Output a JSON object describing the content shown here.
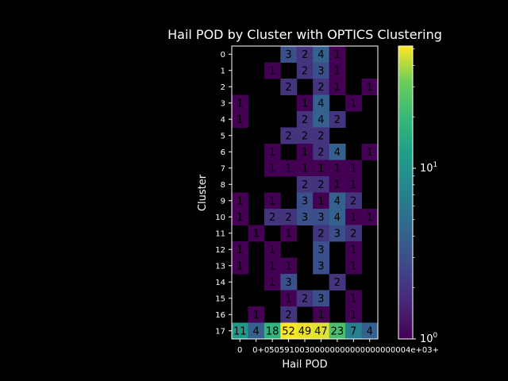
{
  "chart_data": {
    "type": "heatmap",
    "title": "Hail POD by Cluster with OPTICS Clustering",
    "xlabel": "Hail POD",
    "ylabel": "Cluster",
    "x_tick_labels": [
      "0",
      "0+05",
      "0.1",
      "0.15",
      "0.2",
      "0.25",
      "0.3",
      "0.35",
      "0.4",
      "0.45",
      "0.5",
      "0.5e+03+"
    ],
    "x_tick_text": "0    0+05059100300000000000000000004e+03+",
    "y_tick_labels": [
      "0",
      "1",
      "2",
      "3",
      "4",
      "5",
      "6",
      "7",
      "8",
      "9",
      "10",
      "11",
      "12",
      "13",
      "14",
      "15",
      "16",
      "17"
    ],
    "colorbar": {
      "scale": "log",
      "min": 1,
      "max": 52,
      "ticks": [
        1,
        10
      ],
      "tick_labels": [
        "10^0",
        "10^1"
      ],
      "colormap": "viridis"
    },
    "matrix": [
      [
        0,
        0,
        0,
        3,
        2,
        4,
        1,
        0,
        0
      ],
      [
        0,
        0,
        1,
        0,
        2,
        3,
        1,
        0,
        0
      ],
      [
        0,
        0,
        0,
        2,
        0,
        2,
        1,
        0,
        1
      ],
      [
        1,
        0,
        0,
        0,
        1,
        4,
        0,
        1,
        0
      ],
      [
        1,
        0,
        0,
        0,
        2,
        4,
        2,
        0,
        0
      ],
      [
        0,
        0,
        0,
        2,
        2,
        2,
        0,
        0,
        0
      ],
      [
        0,
        0,
        1,
        0,
        1,
        2,
        4,
        0,
        1
      ],
      [
        0,
        0,
        1,
        1,
        1,
        1,
        1,
        1,
        0
      ],
      [
        0,
        0,
        0,
        0,
        2,
        2,
        1,
        1,
        0
      ],
      [
        1,
        0,
        1,
        0,
        3,
        1,
        4,
        2,
        0
      ],
      [
        1,
        0,
        2,
        2,
        3,
        3,
        4,
        1,
        1
      ],
      [
        0,
        1,
        0,
        1,
        0,
        2,
        3,
        2,
        0
      ],
      [
        1,
        0,
        1,
        0,
        0,
        3,
        0,
        1,
        0
      ],
      [
        1,
        0,
        1,
        1,
        0,
        3,
        0,
        1,
        0
      ],
      [
        0,
        0,
        1,
        3,
        0,
        0,
        2,
        0,
        0
      ],
      [
        0,
        0,
        0,
        1,
        2,
        3,
        0,
        1,
        0
      ],
      [
        0,
        1,
        0,
        2,
        0,
        1,
        0,
        1,
        0
      ],
      [
        11,
        4,
        18,
        52,
        49,
        47,
        23,
        7,
        4
      ]
    ]
  }
}
